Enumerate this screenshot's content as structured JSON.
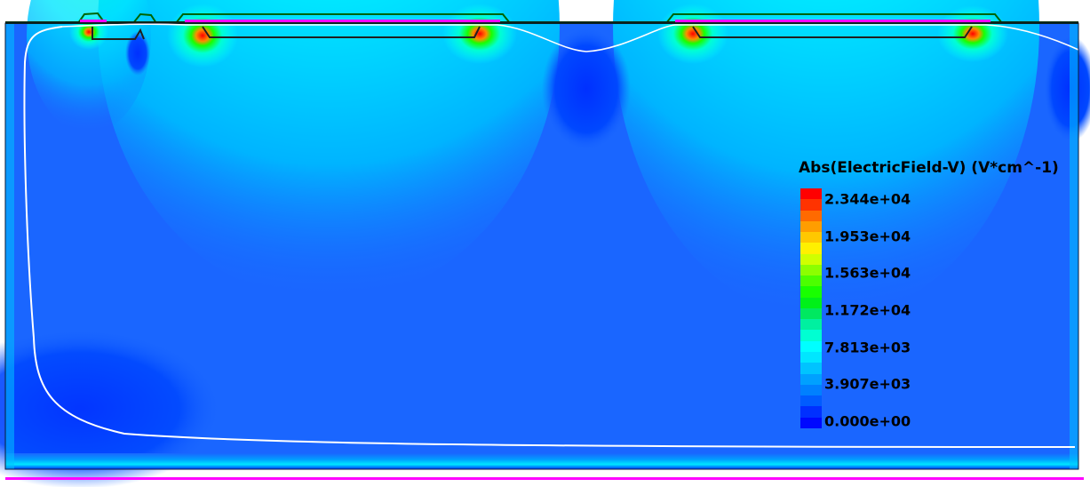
{
  "legend": {
    "title": "Abs(ElectricField-V) (V*cm^-1)",
    "ticks": [
      "2.344e+04",
      "1.953e+04",
      "1.563e+04",
      "1.172e+04",
      "7.813e+03",
      "3.907e+03",
      "0.000e+00"
    ],
    "range": [
      0,
      23440
    ],
    "colors": [
      "#ff0000",
      "#ff3300",
      "#ff6a00",
      "#ff9d00",
      "#ffc800",
      "#fff000",
      "#cfff00",
      "#8cff00",
      "#4cff00",
      "#19ff00",
      "#00f019",
      "#00e860",
      "#00f0a0",
      "#00ffd2",
      "#00ffff",
      "#00e6ff",
      "#00c3ff",
      "#00a0ff",
      "#0080ff",
      "#005cff",
      "#0030ff",
      "#0008ff"
    ]
  },
  "field": {
    "background_color": "#1a66ff",
    "junction_line_color": "#ffffff",
    "contact_color": "#ff00ff",
    "oxide_color": "#006400"
  }
}
